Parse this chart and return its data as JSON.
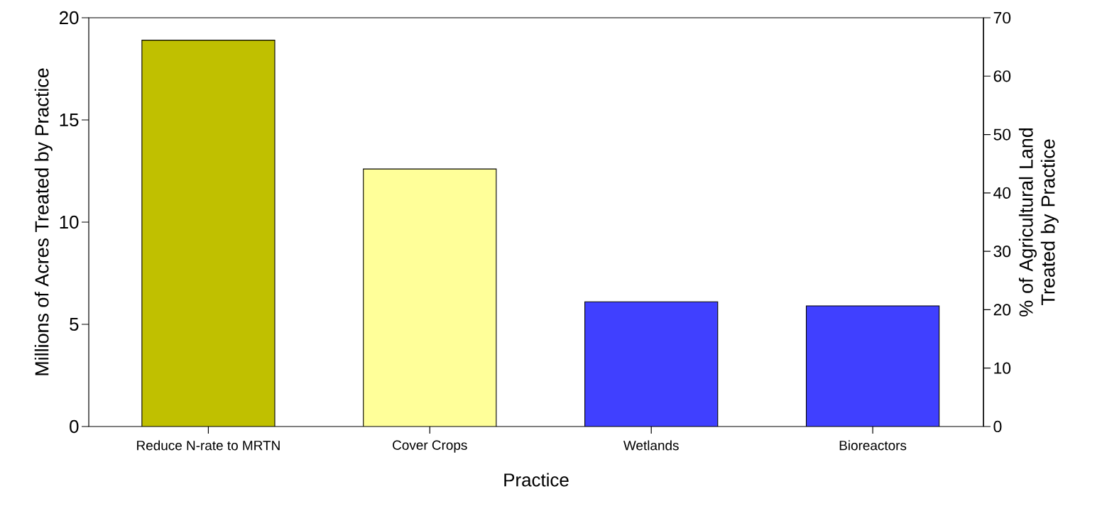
{
  "chart_data": {
    "type": "bar",
    "xlabel": "Practice",
    "ylabel": "Millions of Acres Treated by Practice",
    "y2label": "% of Agricultural Land Treated by Practice",
    "categories": [
      "Reduce N-rate to MRTN",
      "Cover Crops",
      "Wetlands",
      "Bioreactors"
    ],
    "values": [
      18.9,
      12.6,
      6.1,
      5.9
    ],
    "colors": [
      "#c0c000",
      "#ffff99",
      "#4040ff",
      "#4040ff"
    ],
    "ylim": [
      0,
      20
    ],
    "yticks": [
      0,
      5,
      10,
      15,
      20
    ],
    "y2lim": [
      0,
      70
    ],
    "y2ticks": [
      0,
      10,
      20,
      30,
      40,
      50,
      60,
      70
    ]
  }
}
